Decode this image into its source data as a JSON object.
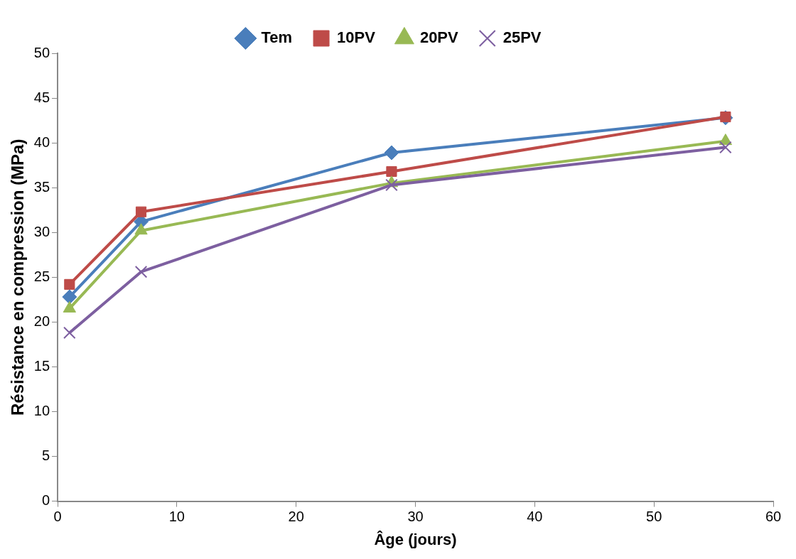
{
  "chart_data": {
    "type": "line",
    "xlabel": "Âge (jours)",
    "ylabel": "Résistance en compression (MPa)",
    "x": [
      1,
      7,
      28,
      56
    ],
    "xlim": [
      0,
      60
    ],
    "xticks": [
      0,
      10,
      20,
      30,
      40,
      50,
      60
    ],
    "ylim": [
      0,
      50
    ],
    "yticks": [
      0,
      5,
      10,
      15,
      20,
      25,
      30,
      35,
      40,
      45,
      50
    ],
    "grid": false,
    "legend": "top",
    "line_style": "solid",
    "series": [
      {
        "name": "Tem",
        "color": "#4a7ebb",
        "marker": "diamond",
        "values": [
          22.8,
          31.2,
          38.9,
          42.8
        ]
      },
      {
        "name": "10PV",
        "color": "#be4b48",
        "marker": "square",
        "values": [
          24.2,
          32.3,
          36.8,
          42.9
        ]
      },
      {
        "name": "20PV",
        "color": "#98b954",
        "marker": "triangle",
        "values": [
          21.5,
          30.2,
          35.5,
          40.2
        ]
      },
      {
        "name": "25PV",
        "color": "#7d5fa0",
        "marker": "cross",
        "values": [
          18.8,
          25.6,
          35.3,
          39.5
        ]
      }
    ]
  }
}
